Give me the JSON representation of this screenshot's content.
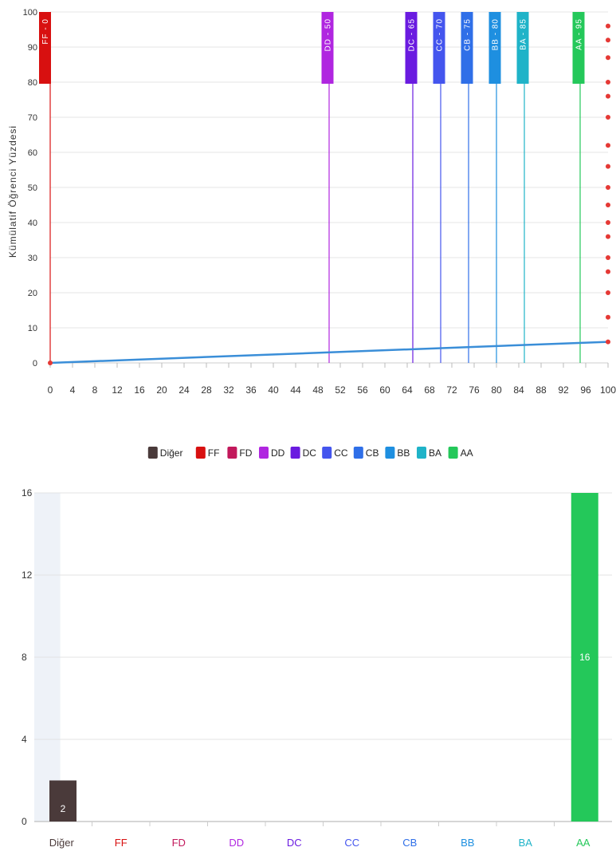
{
  "chart_data": [
    {
      "type": "line",
      "ylabel": "Kümülatif Öğrenci Yüzdesi",
      "xlim": [
        0,
        100
      ],
      "ylim": [
        0,
        100
      ],
      "x_ticks": [
        "0",
        "4",
        "8",
        "12",
        "16",
        "20",
        "24",
        "28",
        "32",
        "36",
        "40",
        "44",
        "48",
        "52",
        "56",
        "60",
        "64",
        "68",
        "72",
        "76",
        "80",
        "84",
        "88",
        "92",
        "96",
        "100"
      ],
      "y_ticks": [
        "0",
        "10",
        "20",
        "30",
        "40",
        "50",
        "60",
        "70",
        "80",
        "90",
        "100"
      ],
      "grid": true,
      "series": [
        {
          "color": "#3a8ed8",
          "x": [
            0,
            100
          ],
          "y": [
            0,
            6
          ]
        }
      ],
      "markers": {
        "color": "#e53935",
        "points": [
          {
            "x": 0,
            "y": 0
          },
          {
            "x": 100,
            "y": 6
          },
          {
            "x": 100,
            "y": 13
          },
          {
            "x": 100,
            "y": 20
          },
          {
            "x": 100,
            "y": 26
          },
          {
            "x": 100,
            "y": 30
          },
          {
            "x": 100,
            "y": 36
          },
          {
            "x": 100,
            "y": 40
          },
          {
            "x": 100,
            "y": 45
          },
          {
            "x": 100,
            "y": 50
          },
          {
            "x": 100,
            "y": 56
          },
          {
            "x": 100,
            "y": 62
          },
          {
            "x": 100,
            "y": 70
          },
          {
            "x": 100,
            "y": 76
          },
          {
            "x": 100,
            "y": 80
          },
          {
            "x": 100,
            "y": 87
          },
          {
            "x": 100,
            "y": 92
          },
          {
            "x": 100,
            "y": 96
          }
        ]
      },
      "thresholds": [
        {
          "label": "FF - 0",
          "x": 0,
          "color": "#d81010"
        },
        {
          "label": "DD - 50",
          "x": 50,
          "color": "#b026e0"
        },
        {
          "label": "DC - 65",
          "x": 65,
          "color": "#6a1be0"
        },
        {
          "label": "CC - 70",
          "x": 70,
          "color": "#4455ee"
        },
        {
          "label": "CB - 75",
          "x": 75,
          "color": "#2f6fe8"
        },
        {
          "label": "BB - 80",
          "x": 80,
          "color": "#1e8fe0"
        },
        {
          "label": "BA - 85",
          "x": 85,
          "color": "#1fb3c8"
        },
        {
          "label": "AA - 95",
          "x": 95,
          "color": "#24c85a"
        }
      ]
    },
    {
      "type": "bar",
      "categories": [
        "Diğer",
        "FF",
        "FD",
        "DD",
        "DC",
        "CC",
        "CB",
        "BB",
        "BA",
        "AA"
      ],
      "category_colors": [
        "#4a3a3a",
        "#d81010",
        "#c2185b",
        "#b026e0",
        "#6a1be0",
        "#4455ee",
        "#2f6fe8",
        "#1e8fe0",
        "#1fb3c8",
        "#24c85a"
      ],
      "values": [
        2,
        0,
        0,
        0,
        0,
        0,
        0,
        0,
        0,
        16
      ],
      "data_labels": [
        "2",
        "",
        "",
        "",
        "",
        "",
        "",
        "",
        "",
        "16"
      ],
      "ylim": [
        0,
        16
      ],
      "y_ticks": [
        "0",
        "4",
        "8",
        "12",
        "16"
      ],
      "grid": true,
      "highlight_category": "Diğer",
      "legend": {
        "position": "top-center",
        "items": [
          {
            "label": "Diğer",
            "color": "#4a3a3a"
          },
          {
            "label": "FF",
            "color": "#d81010"
          },
          {
            "label": "FD",
            "color": "#c2185b"
          },
          {
            "label": "DD",
            "color": "#b026e0"
          },
          {
            "label": "DC",
            "color": "#6a1be0"
          },
          {
            "label": "CC",
            "color": "#4455ee"
          },
          {
            "label": "CB",
            "color": "#2f6fe8"
          },
          {
            "label": "BB",
            "color": "#1e8fe0"
          },
          {
            "label": "BA",
            "color": "#1fb3c8"
          },
          {
            "label": "AA",
            "color": "#24c85a"
          }
        ]
      }
    }
  ]
}
